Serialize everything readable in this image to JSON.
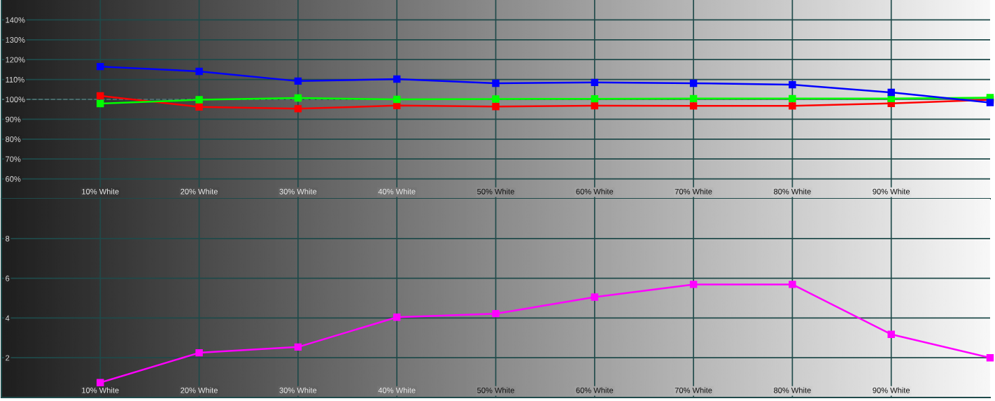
{
  "chart_data": [
    {
      "type": "line",
      "x": [
        10,
        20,
        30,
        40,
        50,
        60,
        70,
        80,
        90,
        100
      ],
      "xlim": [
        0,
        100
      ],
      "xticks": [
        {
          "value": 10,
          "label": "10% White"
        },
        {
          "value": 20,
          "label": "20% White"
        },
        {
          "value": 30,
          "label": "30% White"
        },
        {
          "value": 40,
          "label": "40% White"
        },
        {
          "value": 50,
          "label": "50% White"
        },
        {
          "value": 60,
          "label": "60% White"
        },
        {
          "value": 70,
          "label": "70% White"
        },
        {
          "value": 80,
          "label": "80% White"
        },
        {
          "value": 90,
          "label": "90% White"
        }
      ],
      "ylim": [
        50,
        150
      ],
      "yticks": [
        {
          "value": 60,
          "label": "60%"
        },
        {
          "value": 70,
          "label": "70%"
        },
        {
          "value": 80,
          "label": "80%"
        },
        {
          "value": 90,
          "label": "90%"
        },
        {
          "value": 100,
          "label": "100%"
        },
        {
          "value": 110,
          "label": "110%"
        },
        {
          "value": 120,
          "label": "120%"
        },
        {
          "value": 130,
          "label": "130%"
        },
        {
          "value": 140,
          "label": "140%"
        }
      ],
      "grid": true,
      "marker": "square",
      "line_style": "solid",
      "ref_lines": [
        {
          "axis": "y",
          "value": 100,
          "color": "#ffffff",
          "line_style": "dashed"
        }
      ],
      "series": [
        {
          "color": "#ff0000",
          "values": [
            101.8,
            96.2,
            95.3,
            96.9,
            96.4,
            96.8,
            96.7,
            96.7,
            98.0,
            99.8
          ]
        },
        {
          "color": "#00ff00",
          "values": [
            97.9,
            99.8,
            100.7,
            100.0,
            100.2,
            100.3,
            100.4,
            100.4,
            100.4,
            100.9
          ]
        },
        {
          "color": "#0000ff",
          "values": [
            116.5,
            114.1,
            109.2,
            110.2,
            108.1,
            108.5,
            108.1,
            107.4,
            103.5,
            98.4
          ]
        }
      ]
    },
    {
      "type": "line",
      "x": [
        10,
        20,
        30,
        40,
        50,
        60,
        70,
        80,
        90,
        100
      ],
      "xlim": [
        0,
        100
      ],
      "xticks": [
        {
          "value": 10,
          "label": "10% White"
        },
        {
          "value": 20,
          "label": "20% White"
        },
        {
          "value": 30,
          "label": "30% White"
        },
        {
          "value": 40,
          "label": "40% White"
        },
        {
          "value": 50,
          "label": "50% White"
        },
        {
          "value": 60,
          "label": "60% White"
        },
        {
          "value": 70,
          "label": "70% White"
        },
        {
          "value": 80,
          "label": "80% White"
        },
        {
          "value": 90,
          "label": "90% White"
        }
      ],
      "ylim": [
        0,
        10
      ],
      "yticks": [
        2,
        4,
        6,
        8
      ],
      "grid": true,
      "marker": "square",
      "line_style": "solid",
      "series": [
        {
          "color": "#ff00ff",
          "values": [
            0.75,
            2.25,
            2.54,
            4.04,
            4.22,
            5.05,
            5.69,
            5.69,
            3.18,
            2.0
          ]
        }
      ]
    }
  ]
}
